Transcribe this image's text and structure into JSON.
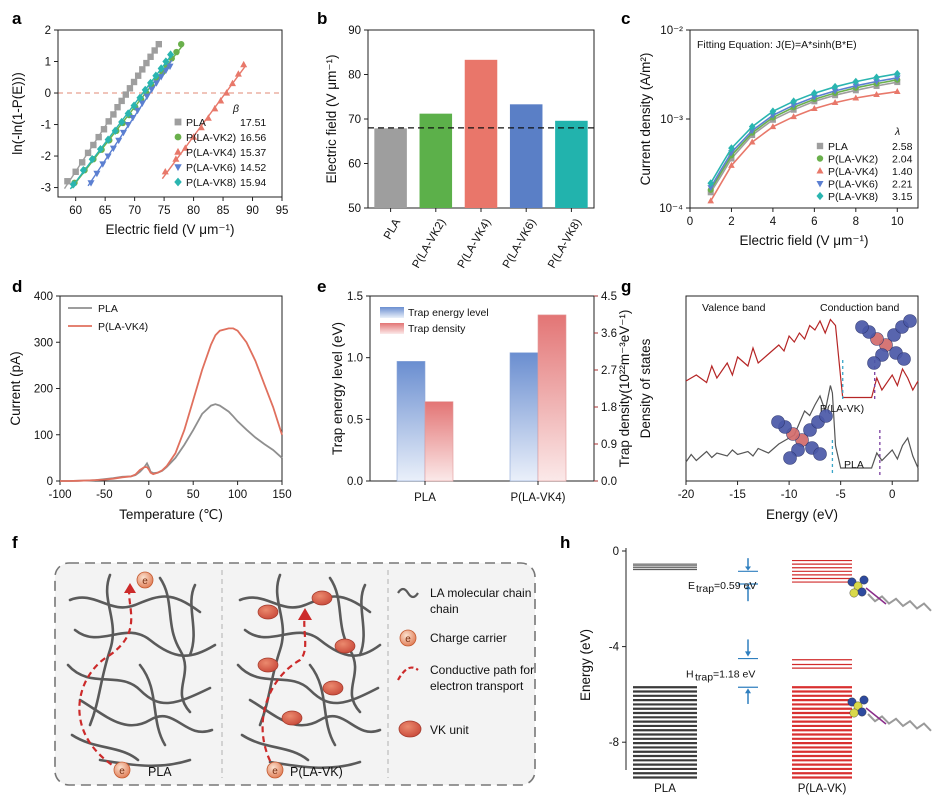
{
  "panel_labels": [
    "a",
    "b",
    "c",
    "d",
    "e",
    "f",
    "g",
    "h"
  ],
  "chart_data": [
    {
      "panel": "a",
      "type": "scatter",
      "xlabel": "Electric field (V μm⁻¹)",
      "ylabel": "ln(-ln(1-P(E)))",
      "xlim": [
        57,
        95
      ],
      "ylim": [
        -3.3,
        2
      ],
      "xticks": [
        "60",
        "65",
        "70",
        "75",
        "80",
        "85",
        "90",
        "95"
      ],
      "yticks": [
        "-3",
        "-2",
        "-1",
        "0",
        "1",
        "2"
      ],
      "legend_header": "β",
      "reference_line_y": 0,
      "series": [
        {
          "name": "PLA",
          "beta": "17.51",
          "color": "#9e9e9e",
          "marker": "square",
          "x": [
            58.6,
            60.0,
            61.1,
            62.1,
            63.0,
            63.9,
            64.8,
            65.6,
            66.4,
            67.1,
            67.8,
            68.5,
            69.2,
            69.9,
            70.6,
            71.3,
            72.0,
            72.7,
            73.4,
            74.1
          ],
          "y": [
            -2.8,
            -2.5,
            -2.2,
            -1.9,
            -1.65,
            -1.4,
            -1.15,
            -0.9,
            -0.68,
            -0.45,
            -0.25,
            -0.05,
            0.15,
            0.35,
            0.55,
            0.75,
            0.95,
            1.15,
            1.35,
            1.55
          ]
        },
        {
          "name": "P(LA-VK2)",
          "beta": "16.56",
          "color": "#6ab04c",
          "marker": "circle",
          "x": [
            59.8,
            61.5,
            63.0,
            64.4,
            65.7,
            66.9,
            68.0,
            69.1,
            70.1,
            71.1,
            72.0,
            72.9,
            73.8,
            74.7,
            75.5,
            76.3,
            77.1,
            77.9
          ],
          "y": [
            -2.85,
            -2.45,
            -2.1,
            -1.8,
            -1.5,
            -1.2,
            -0.95,
            -0.7,
            -0.45,
            -0.2,
            0.0,
            0.22,
            0.45,
            0.65,
            0.85,
            1.1,
            1.3,
            1.55
          ]
        },
        {
          "name": "P(LA-VK4)",
          "beta": "15.37",
          "color": "#e8786a",
          "marker": "triangle-up",
          "x": [
            75.2,
            77.0,
            78.6,
            80.0,
            81.3,
            82.5,
            83.6,
            84.6,
            85.6,
            86.6,
            87.6,
            88.5
          ],
          "y": [
            -2.5,
            -2.1,
            -1.75,
            -1.4,
            -1.1,
            -0.8,
            -0.5,
            -0.25,
            0.0,
            0.3,
            0.6,
            0.9
          ]
        },
        {
          "name": "P(LA-VK6)",
          "beta": "14.52",
          "color": "#5b7fd1",
          "marker": "triangle-down",
          "x": [
            62.6,
            63.6,
            64.6,
            65.5,
            66.4,
            67.3,
            68.1,
            68.9,
            69.7,
            70.5,
            71.3,
            72.1,
            72.9,
            73.7,
            74.5,
            75.3,
            76.0
          ],
          "y": [
            -2.85,
            -2.55,
            -2.25,
            -2.0,
            -1.75,
            -1.5,
            -1.25,
            -1.0,
            -0.78,
            -0.55,
            -0.32,
            -0.1,
            0.12,
            0.32,
            0.52,
            0.72,
            0.85
          ]
        },
        {
          "name": "P(LA-VK8)",
          "beta": "15.94",
          "color": "#2ab5b0",
          "marker": "diamond",
          "x": [
            59.6,
            61.3,
            62.8,
            64.2,
            65.5,
            66.7,
            67.8,
            68.9,
            69.9,
            70.9,
            71.8,
            72.7,
            73.6,
            74.5,
            75.3,
            76.1
          ],
          "y": [
            -2.9,
            -2.45,
            -2.1,
            -1.78,
            -1.48,
            -1.2,
            -0.92,
            -0.65,
            -0.4,
            -0.15,
            0.1,
            0.32,
            0.55,
            0.78,
            1.0,
            1.22
          ]
        }
      ]
    },
    {
      "panel": "b",
      "type": "bar",
      "ylabel": "Electric field (V μm⁻¹)",
      "ylim": [
        50,
        90
      ],
      "yticks": [
        "50",
        "60",
        "70",
        "80",
        "90"
      ],
      "categories": [
        "PLA",
        "P(LA-VK2)",
        "P(LA-VK4)",
        "P(LA-VK6)",
        "P(LA-VK8)"
      ],
      "values": [
        67.9,
        71.2,
        83.3,
        73.3,
        69.6
      ],
      "colors": [
        "#9e9e9e",
        "#5cb04a",
        "#e9766a",
        "#5a7fc6",
        "#22b3ad"
      ],
      "reference_line_y": 68
    },
    {
      "panel": "c",
      "type": "line",
      "xlabel": "Electric field (V μm⁻¹)",
      "ylabel": "Current density (A/m²)",
      "title": "Fitting Equation: J(E)=A*sinh(B*E)",
      "xlim": [
        0,
        11
      ],
      "xticks": [
        "0",
        "2",
        "4",
        "6",
        "8",
        "10"
      ],
      "yscale": "log",
      "ylim": [
        0.0001,
        0.01
      ],
      "yticks": [
        "10⁻⁴",
        "10⁻³",
        "10⁻²"
      ],
      "legend_header": "λ",
      "x": [
        1,
        1.5,
        2,
        3,
        4,
        5,
        6,
        7,
        8,
        9,
        10
      ],
      "series": [
        {
          "name": "PLA",
          "lambda": "2.58",
          "color": "#9e9e9e",
          "marker": "square",
          "values": [
            0.00015,
            0.00023,
            0.00036,
            0.00066,
            0.00098,
            0.00127,
            0.00158,
            0.00185,
            0.0021,
            0.00235,
            0.0026
          ]
        },
        {
          "name": "P(LA-VK2)",
          "lambda": "2.04",
          "color": "#6ab04c",
          "marker": "circle",
          "values": [
            0.00016,
            0.00025,
            0.00039,
            0.0007,
            0.00104,
            0.00135,
            0.00167,
            0.00196,
            0.00224,
            0.0025,
            0.00276
          ]
        },
        {
          "name": "P(LA-VK4)",
          "lambda": "1.40",
          "color": "#e8786a",
          "marker": "triangle-up",
          "values": [
            0.00012,
            0.00019,
            0.0003,
            0.00055,
            0.00082,
            0.00106,
            0.00131,
            0.00153,
            0.00172,
            0.00188,
            0.00203
          ]
        },
        {
          "name": "P(LA-VK6)",
          "lambda": "2.21",
          "color": "#5b7fd1",
          "marker": "triangle-down",
          "values": [
            0.00017,
            0.00027,
            0.00042,
            0.00074,
            0.0011,
            0.00143,
            0.00176,
            0.00207,
            0.00236,
            0.00264,
            0.0029
          ]
        },
        {
          "name": "P(LA-VK8)",
          "lambda": "3.15",
          "color": "#2ab5b0",
          "marker": "diamond",
          "values": [
            0.00019,
            0.0003,
            0.00047,
            0.00082,
            0.00122,
            0.00158,
            0.00195,
            0.0023,
            0.00263,
            0.00293,
            0.00322
          ]
        }
      ]
    },
    {
      "panel": "d",
      "type": "line",
      "xlabel": "Temperature (℃)",
      "ylabel": "Current (pA)",
      "xlim": [
        -100,
        150
      ],
      "ylim": [
        0,
        400
      ],
      "xticks": [
        "-100",
        "-50",
        "0",
        "50",
        "100",
        "150"
      ],
      "yticks": [
        "0",
        "100",
        "200",
        "300",
        "400"
      ],
      "x": [
        -100,
        -90,
        -80,
        -70,
        -60,
        -50,
        -40,
        -30,
        -20,
        -15,
        -10,
        -5,
        -2,
        0,
        2,
        5,
        10,
        15,
        20,
        30,
        40,
        50,
        60,
        70,
        75,
        80,
        90,
        95,
        100,
        110,
        120,
        130,
        140,
        150
      ],
      "series": [
        {
          "name": "PLA",
          "color": "#8f8f8f",
          "values": [
            0,
            0,
            0.5,
            1,
            2,
            4,
            6,
            9,
            10,
            13,
            20,
            30,
            38,
            30,
            20,
            17,
            18,
            22,
            30,
            50,
            78,
            110,
            145,
            163,
            166,
            163,
            150,
            140,
            129,
            111,
            94,
            80,
            67,
            50
          ]
        },
        {
          "name": "P(LA-VK4)",
          "color": "#e0705e",
          "values": [
            0,
            0,
            0.5,
            1,
            2,
            3,
            5,
            8,
            10,
            14,
            24,
            30,
            30,
            25,
            18,
            15,
            18,
            23,
            32,
            60,
            110,
            175,
            240,
            295,
            315,
            325,
            330,
            330,
            325,
            300,
            260,
            210,
            160,
            100
          ]
        }
      ]
    },
    {
      "panel": "e",
      "type": "bar",
      "ylabel": "Trap energy level (eV)",
      "y2label": "Trap density(10²²m⁻³eV⁻¹)",
      "ylim": [
        0,
        1.5
      ],
      "y2lim": [
        0,
        4.5
      ],
      "yticks": [
        "0.0",
        "0.5",
        "1.0",
        "1.5"
      ],
      "y2ticks": [
        "0.0",
        "0.9",
        "1.8",
        "2.7",
        "3.6",
        "4.5"
      ],
      "categories": [
        "PLA",
        "P(LA-VK4)"
      ],
      "series": [
        {
          "name": "Trap energy level",
          "axis": "left",
          "color": "#6b8fcf",
          "values": [
            0.97,
            1.04
          ]
        },
        {
          "name": "Trap density",
          "axis": "right",
          "color": "#e27a7a",
          "values": [
            1.93,
            4.04
          ]
        }
      ]
    },
    {
      "panel": "g",
      "type": "line",
      "xlabel": "Energy (eV)",
      "ylabel": "Density of states",
      "xlim": [
        -20,
        2.5
      ],
      "xticks": [
        "-20",
        "-15",
        "-10",
        "-5",
        "0"
      ],
      "annotations": [
        "Valence band",
        "Conduction band",
        "P(LA-VK)",
        "PLA"
      ],
      "series": [
        {
          "name": "P(LA-VK)",
          "color": "#b52525",
          "x": [
            -20,
            -19,
            -18,
            -17.5,
            -17,
            -16,
            -15.5,
            -15,
            -14,
            -13.5,
            -13,
            -12,
            -11,
            -10.5,
            -10,
            -9.5,
            -9,
            -8.5,
            -8,
            -7.5,
            -7,
            -6.5,
            -6,
            -5.5,
            -5,
            -4.8,
            -4,
            -3,
            -2,
            -1.5,
            -1,
            0,
            0.5,
            1,
            1.5,
            2,
            2.5
          ],
          "values": [
            0.58,
            0.62,
            0.57,
            0.68,
            0.6,
            0.7,
            0.62,
            0.74,
            0.68,
            0.8,
            0.7,
            0.76,
            0.82,
            0.78,
            0.88,
            0.84,
            0.9,
            0.86,
            0.95,
            0.92,
            0.98,
            0.9,
            0.99,
            0.95,
            0.6,
            0.47,
            0.47,
            0.47,
            0.47,
            0.6,
            0.52,
            0.62,
            0.55,
            0.66,
            0.6,
            0.52,
            0.58
          ]
        },
        {
          "name": "PLA",
          "color": "#555555",
          "x": [
            -20,
            -19.5,
            -19,
            -18,
            -17.5,
            -17,
            -16,
            -15.5,
            -15,
            -14,
            -13.5,
            -13,
            -12,
            -11,
            -10,
            -9.5,
            -9,
            -8.5,
            -8,
            -7.5,
            -7,
            -6.5,
            -6,
            -5.8,
            -5.5,
            -5,
            -4,
            -3,
            -2,
            -1.5,
            -1,
            0,
            0.5,
            1,
            1.5,
            2,
            2.5
          ],
          "values": [
            0.04,
            0.09,
            0.05,
            0.11,
            0.07,
            0.1,
            0.08,
            0.12,
            0.09,
            0.11,
            0.08,
            0.13,
            0.1,
            0.16,
            0.2,
            0.22,
            0.3,
            0.38,
            0.35,
            0.42,
            0.48,
            0.38,
            0.55,
            0.5,
            0.15,
            0.0,
            0.0,
            0.0,
            0.0,
            0.1,
            0.05,
            0.12,
            0.06,
            0.15,
            0.2,
            0.08,
            0.0
          ]
        }
      ]
    },
    {
      "panel": "h",
      "type": "diagram",
      "ylabel": "Energy (eV)",
      "ylim": [
        -10,
        0
      ],
      "yticks": [
        "0",
        "-4",
        "-8"
      ],
      "categories": [
        "PLA",
        "P(LA-VK)"
      ],
      "annotations": [
        "Eₜᵣₐₚ=0.59 eV",
        "Hₜᵣₐₚ=1.18 eV"
      ],
      "e_trap_label_main": "E",
      "e_trap_label_sub": "trap",
      "e_trap_value": "=0.59 eV",
      "h_trap_label_main": "H",
      "h_trap_label_sub": "trap",
      "h_trap_value": "=1.18 eV",
      "pla_levels_unocc": [
        -0.55,
        -0.62,
        -0.7,
        -0.78
      ],
      "vk_levels_unocc": [
        -0.4,
        -0.55,
        -0.7,
        -0.85,
        -1.0,
        -1.15,
        -1.3
      ],
      "vk_levels_mid": [
        -4.55,
        -4.75,
        -4.9
      ]
    }
  ],
  "panel_f": {
    "legend": [
      "LA molecular chain",
      "Charge carrier",
      "Conductive path for electron transport",
      "VK unit"
    ],
    "legend_line3a": "Conductive path for",
    "legend_line3b": "electron transport",
    "labels": [
      "PLA",
      "P(LA-VK)"
    ],
    "carrier_glyph": "e"
  }
}
